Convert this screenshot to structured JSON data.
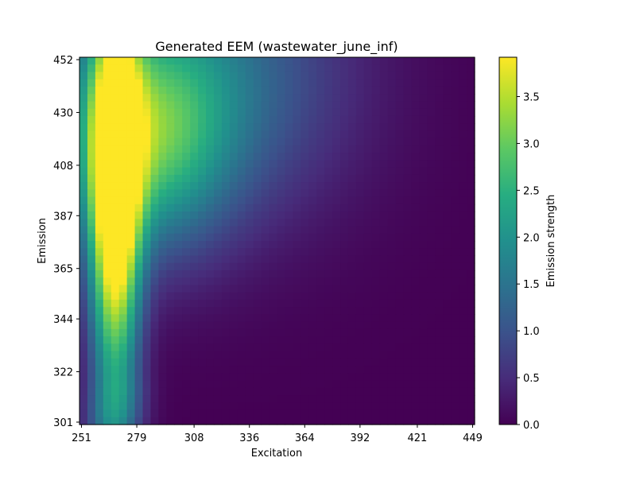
{
  "chart_data": {
    "type": "heatmap",
    "title": "Generated EEM (wastewater_june_inf)",
    "xlabel": "Excitation",
    "ylabel": "Emission",
    "colorbar_label": "Emission strength",
    "colormap": "viridis",
    "x_range": [
      250,
      450
    ],
    "y_range": [
      300,
      453
    ],
    "x_ticks": [
      251,
      279,
      308,
      336,
      364,
      392,
      421,
      449
    ],
    "y_ticks": [
      301,
      322,
      344,
      365,
      387,
      408,
      430,
      452
    ],
    "color_range": [
      0.0,
      3.92
    ],
    "colorbar_ticks": [
      "0.0",
      "0.5",
      "1.0",
      "1.5",
      "2.0",
      "2.5",
      "3.0",
      "3.5"
    ],
    "colorbar_tick_values": [
      0.0,
      0.5,
      1.0,
      1.5,
      2.0,
      2.5,
      3.0,
      3.5
    ],
    "grid": {
      "nx": 50,
      "ny": 50,
      "components": [
        {
          "ex": 268,
          "em": 390,
          "sx": 9,
          "sy": 58,
          "amp": 4.3
        },
        {
          "ex": 284,
          "em": 418,
          "sx": 28,
          "sy": 32,
          "amp": 2.2
        },
        {
          "ex": 314,
          "em": 445,
          "sx": 50,
          "sy": 42,
          "amp": 1.4
        },
        {
          "ex": 269,
          "em": 300,
          "sx": 10,
          "sy": 12,
          "amp": 1.2
        }
      ]
    }
  }
}
